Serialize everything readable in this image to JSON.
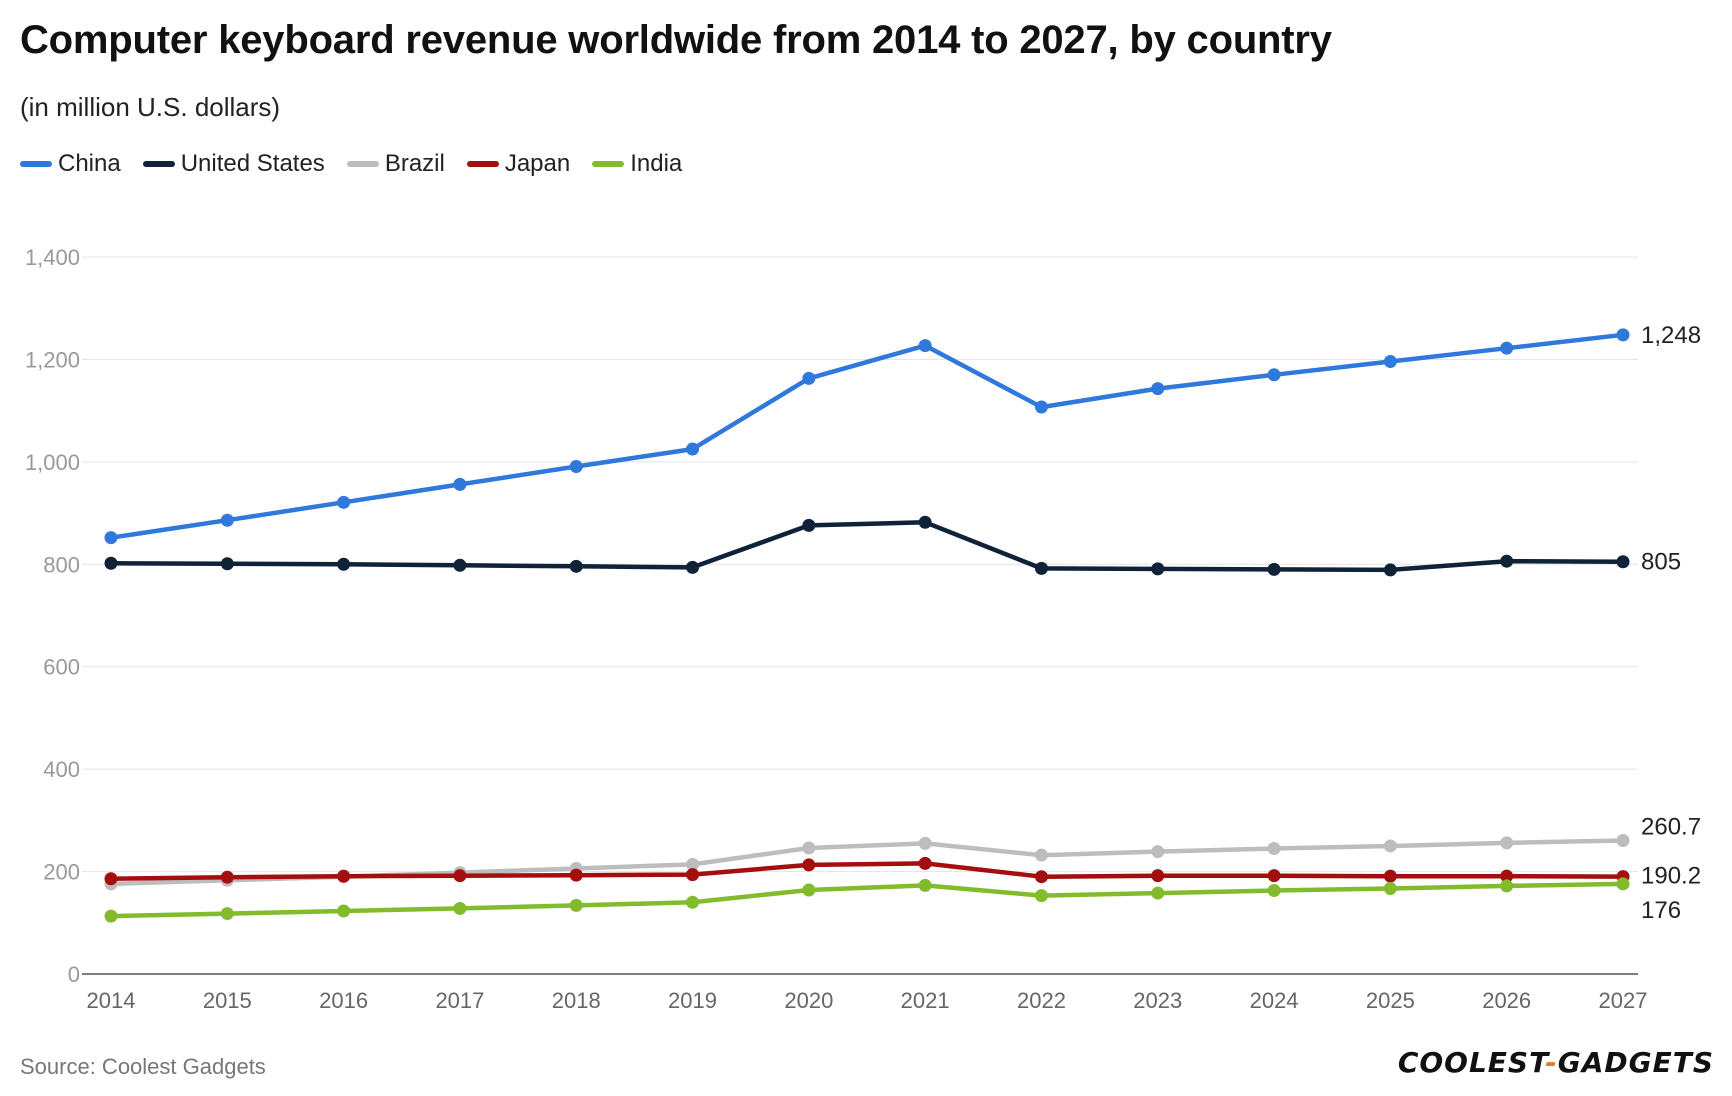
{
  "chart_data": {
    "type": "line",
    "title": "Computer keyboard revenue worldwide from 2014 to 2027, by country",
    "subtitle": "(in million U.S. dollars)",
    "x": [
      "2014",
      "2015",
      "2016",
      "2017",
      "2018",
      "2019",
      "2020",
      "2021",
      "2022",
      "2023",
      "2024",
      "2025",
      "2026",
      "2027"
    ],
    "ylim": [
      0,
      1400
    ],
    "yticks": [
      0,
      200,
      400,
      600,
      800,
      1000,
      1200,
      1400
    ],
    "ytick_labels": [
      "0",
      "200",
      "400",
      "600",
      "800",
      "1,000",
      "1,200",
      "1,400"
    ],
    "grid": true,
    "legend_position": "top-left",
    "series": [
      {
        "name": "China",
        "color": "#2f78dc",
        "values": [
          852,
          886,
          921,
          956,
          991,
          1025,
          1163,
          1227,
          1107,
          1143,
          1170,
          1196,
          1222,
          1248
        ],
        "end_label": "1,248"
      },
      {
        "name": "United States",
        "color": "#0f2238",
        "values": [
          802,
          801,
          800,
          798,
          796,
          794,
          876,
          882,
          792,
          791,
          790,
          789,
          806,
          805
        ],
        "end_label": "805"
      },
      {
        "name": "Brazil",
        "color": "#bdbdbd",
        "values": [
          176,
          183,
          190,
          198,
          206,
          214,
          246,
          255,
          232,
          239,
          245,
          250,
          256,
          260.7
        ],
        "end_label": "260.7"
      },
      {
        "name": "Japan",
        "color": "#a50e0e",
        "values": [
          186,
          189,
          191,
          192,
          193,
          194,
          213,
          216,
          190,
          192,
          192,
          191,
          191,
          190.2
        ],
        "end_label": "190.2"
      },
      {
        "name": "India",
        "color": "#82bb2c",
        "values": [
          113,
          118,
          123,
          128,
          134,
          140,
          164,
          173,
          153,
          158,
          163,
          167,
          172,
          176
        ],
        "end_label": "176"
      }
    ]
  },
  "source_text": "Source: Coolest Gadgets",
  "logo": {
    "left": "COOLEST",
    "dash": "-",
    "right": "GADGETS"
  }
}
